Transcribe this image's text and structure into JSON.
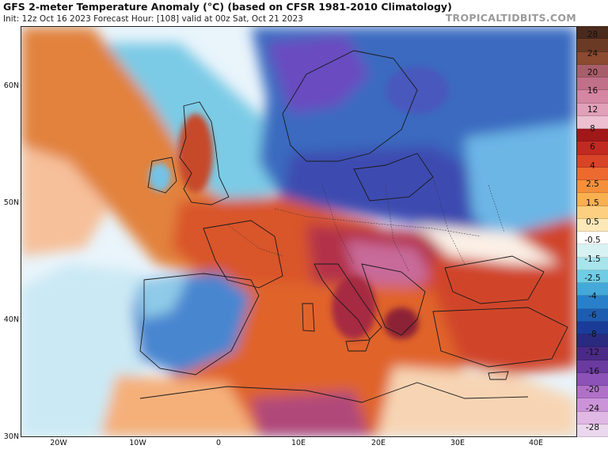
{
  "header": {
    "title": "GFS 2-meter Temperature Anomaly (°C) (based on CFSR 1981-2010 Climatology)",
    "subtitle": "Init: 12z Oct 16 2023   Forecast Hour: [108]   valid at 00z Sat, Oct 21 2023",
    "brand": "TROPICALTIDBITS.COM"
  },
  "axes": {
    "lat_labels": [
      "60N",
      "50N",
      "40N",
      "30N"
    ],
    "lon_labels": [
      "20W",
      "10W",
      "0",
      "10E",
      "20E",
      "30E",
      "40E"
    ]
  },
  "colorbar": {
    "labels": [
      "28",
      "24",
      "20",
      "16",
      "12",
      "8",
      "6",
      "4",
      "2.5",
      "1.5",
      "0.5",
      "-0.5",
      "-1.5",
      "-2.5",
      "-4",
      "-6",
      "-8",
      "-12",
      "-16",
      "-20",
      "-24",
      "-28"
    ],
    "colors": [
      "#4a2a1c",
      "#6b3a24",
      "#8c4a30",
      "#a85e6a",
      "#c07088",
      "#d486a2",
      "#e0a0b8",
      "#ecc0d0",
      "#a01818",
      "#c02a20",
      "#d84428",
      "#ec6a30",
      "#f4903c",
      "#f8b050",
      "#fcd080",
      "#fde8b8",
      "#ffffff",
      "#d8f2f4",
      "#a8e4ec",
      "#70cce4",
      "#44a8d8",
      "#2a80c8",
      "#1e5cb0",
      "#1a3c98",
      "#2a2a80",
      "#4a2a86",
      "#6a3aa0",
      "#8c52b8",
      "#b070c8",
      "#cc94d8",
      "#e0b8e4",
      "#ecd8ee"
    ]
  },
  "map": {
    "palette": {
      "ocean": "#e9f4fb",
      "cool_blue": "#3e78c6",
      "deep_blue": "#2d4fa8",
      "violet": "#6a4cc0",
      "light_cyan": "#8fd4ea",
      "warm_orange": "#e2742e",
      "red": "#c53a22",
      "dark_red": "#9c1e1e",
      "pink": "#c85a86",
      "peach": "#f3ad7a",
      "cream": "#fbe4c8",
      "border": "#1a1a1a"
    }
  }
}
